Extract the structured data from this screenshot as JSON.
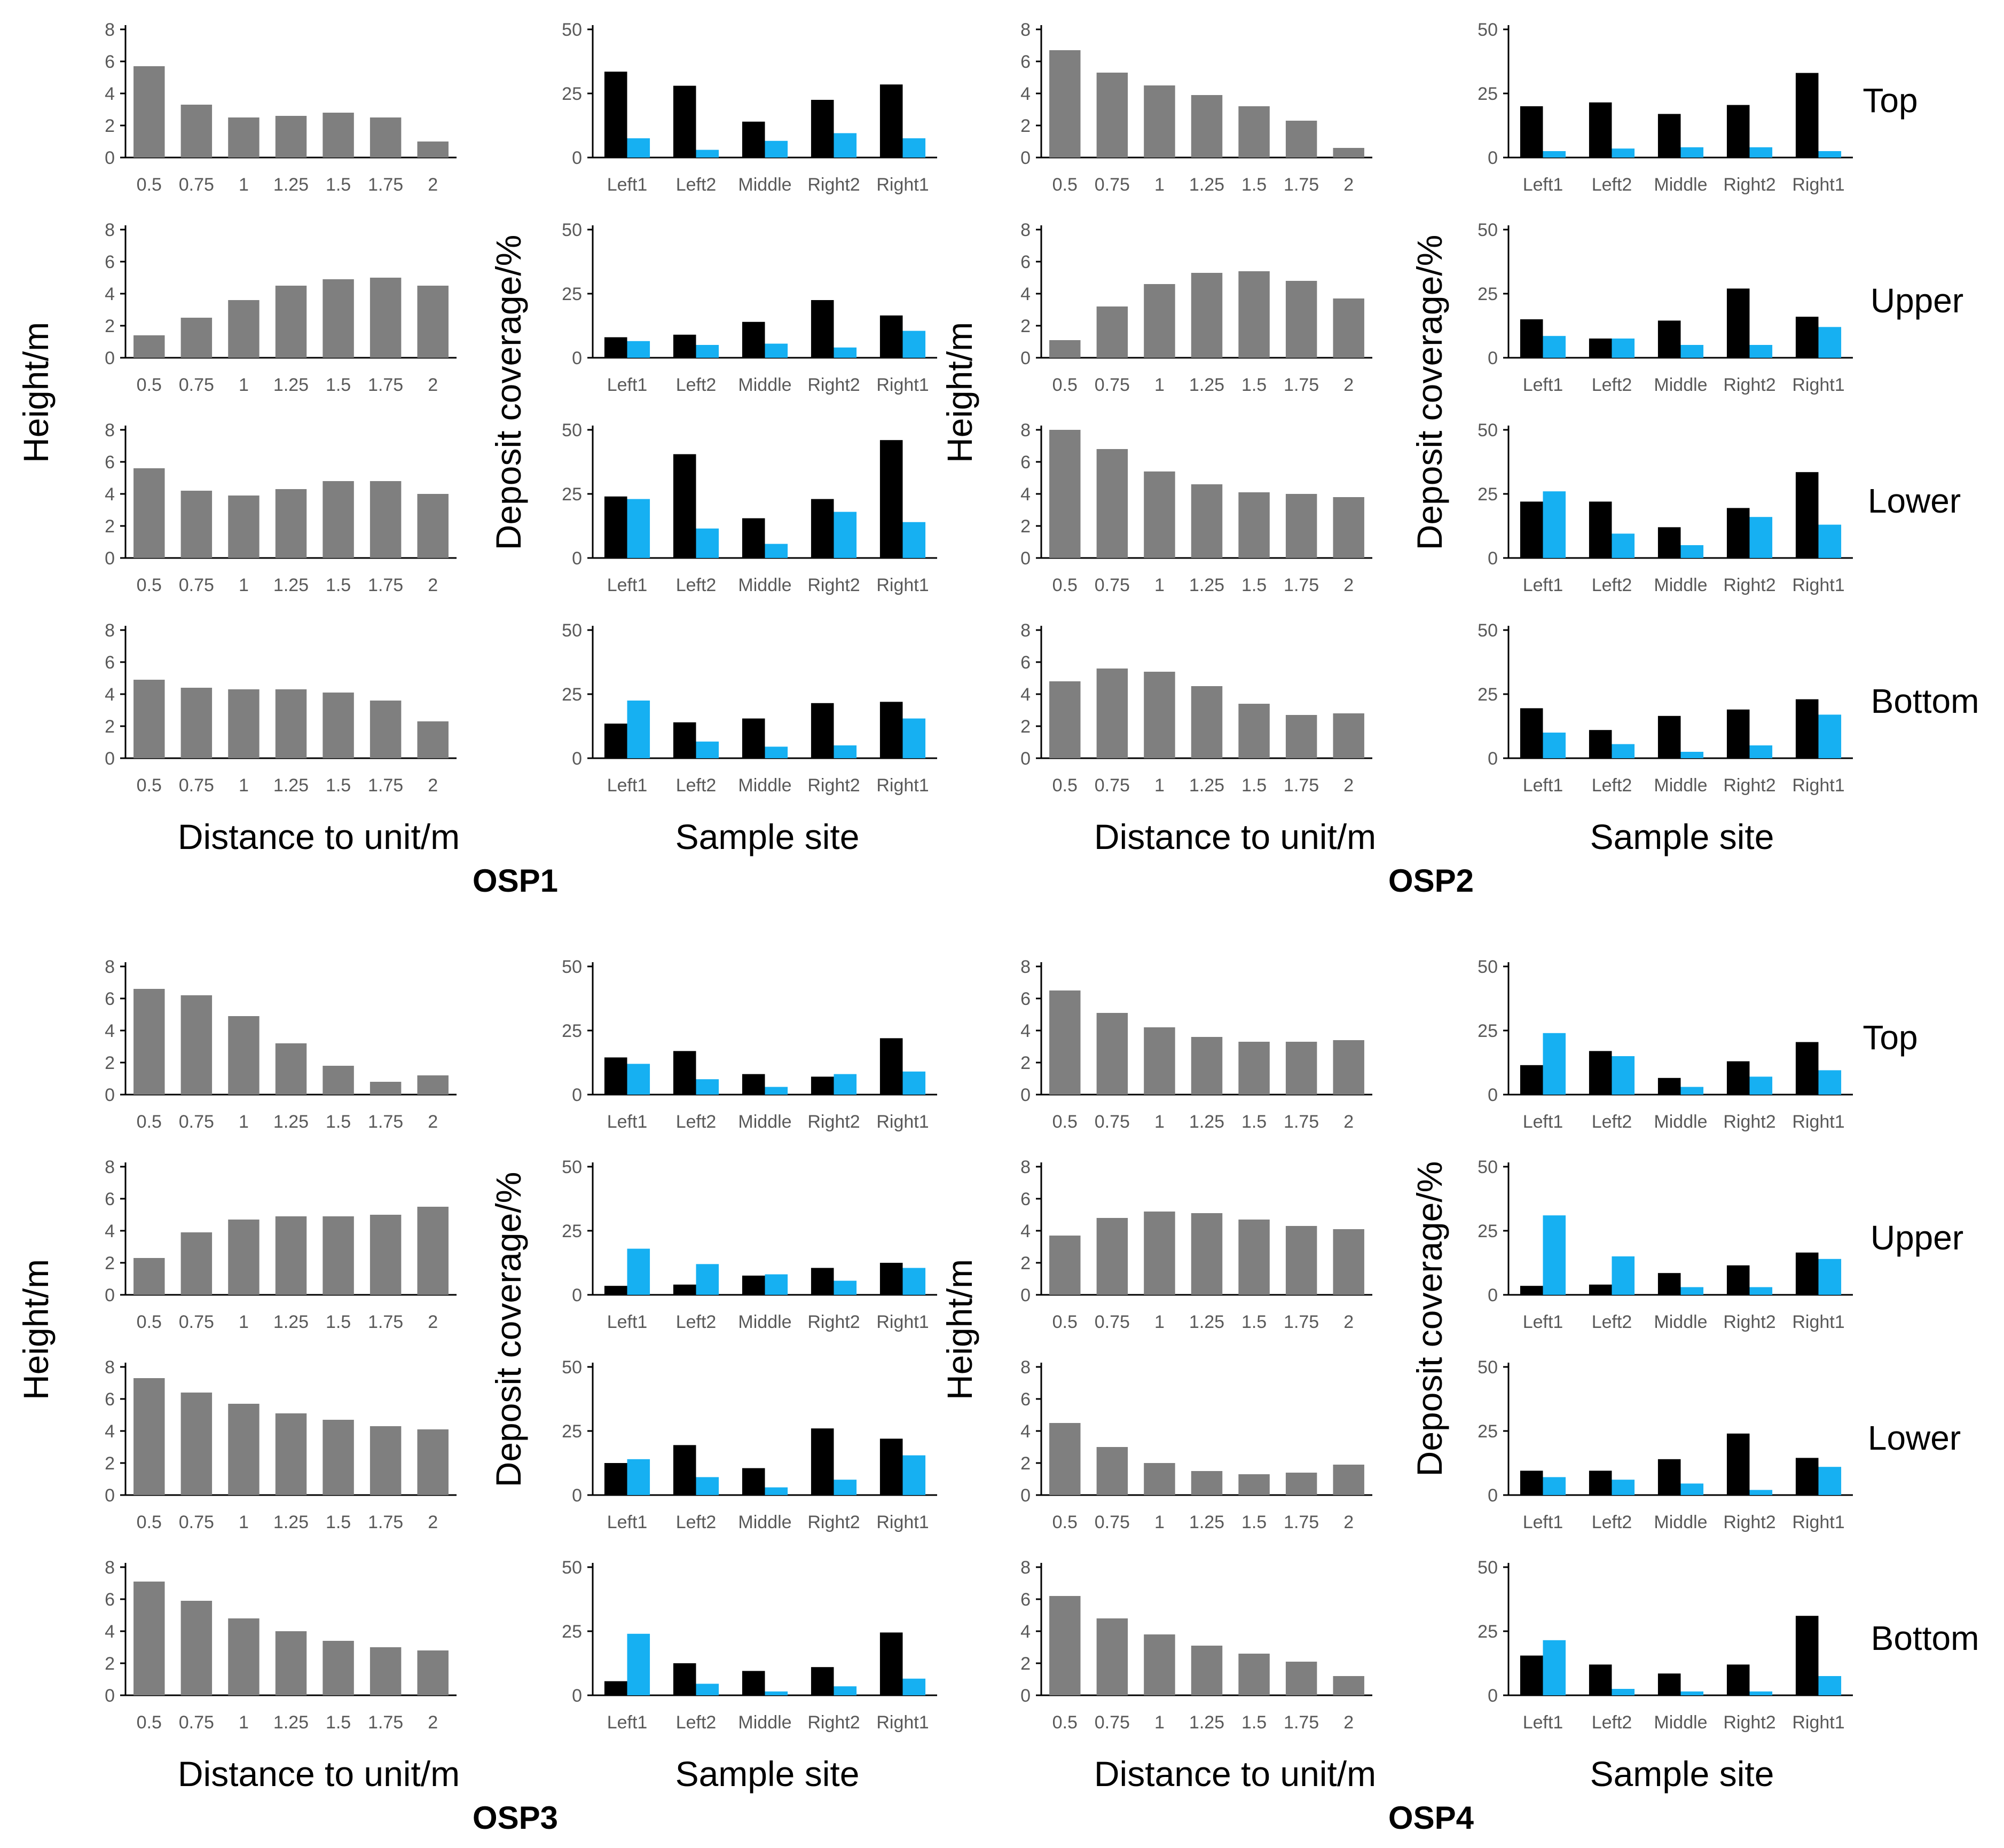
{
  "colors": {
    "height_bar": "#7f7f7f",
    "black_bar": "#000000",
    "blue_bar": "#16b0f2"
  },
  "labels": {
    "height_ylabel": "Height/m",
    "coverage_ylabel": "Deposit coverage/%",
    "distance_xlabel": "Distance to unit/m",
    "site_xlabel": "Sample site"
  },
  "chart_data": {
    "type": "bar",
    "height_axis": {
      "ylim": [
        0,
        8
      ],
      "yticks": [
        "0",
        "2",
        "4",
        "6",
        "8"
      ],
      "categories": [
        "0.5",
        "0.75",
        "1",
        "1.25",
        "1.5",
        "1.75",
        "2"
      ]
    },
    "coverage_axis": {
      "ylim": [
        0,
        50
      ],
      "yticks": [
        "0",
        "25",
        "50"
      ],
      "categories": [
        "Left1",
        "Left2",
        "Middle",
        "Right2",
        "Right1"
      ]
    },
    "row_labels": [
      "Top",
      "Upper",
      "Lower",
      "Bottom"
    ],
    "groups": [
      {
        "name": "OSP1",
        "height": [
          [
            5.7,
            3.3,
            2.5,
            2.6,
            2.8,
            2.5,
            1.0
          ],
          [
            1.4,
            2.5,
            3.6,
            4.5,
            4.9,
            5.0,
            4.5
          ],
          [
            5.6,
            4.2,
            3.9,
            4.3,
            4.8,
            4.8,
            4.0
          ],
          [
            4.9,
            4.4,
            4.3,
            4.3,
            4.1,
            3.6,
            2.3
          ]
        ],
        "coverage": [
          {
            "black": [
              33.5,
              28.0,
              14.0,
              22.5,
              28.5
            ],
            "blue": [
              7.5,
              3.0,
              6.5,
              9.5,
              7.5
            ]
          },
          {
            "black": [
              8.0,
              9.0,
              14.0,
              22.5,
              16.5
            ],
            "blue": [
              6.5,
              5.0,
              5.5,
              4.0,
              10.5
            ]
          },
          {
            "black": [
              24.0,
              40.5,
              15.5,
              23.0,
              46.0
            ],
            "blue": [
              23.0,
              11.5,
              5.5,
              18.0,
              14.0
            ]
          },
          {
            "black": [
              13.5,
              14.0,
              15.5,
              21.5,
              22.0
            ],
            "blue": [
              22.5,
              6.5,
              4.5,
              5.0,
              15.5
            ]
          }
        ]
      },
      {
        "name": "OSP2",
        "height": [
          [
            6.7,
            5.3,
            4.5,
            3.9,
            3.2,
            2.3,
            0.6
          ],
          [
            1.1,
            3.2,
            4.6,
            5.3,
            5.4,
            4.8,
            3.7
          ],
          [
            8.0,
            6.8,
            5.4,
            4.6,
            4.1,
            4.0,
            3.8
          ],
          [
            4.8,
            5.6,
            5.4,
            4.5,
            3.4,
            2.7,
            2.8
          ]
        ],
        "coverage": [
          {
            "black": [
              20.0,
              21.5,
              17.0,
              20.5,
              33.0
            ],
            "blue": [
              2.5,
              3.5,
              4.0,
              4.0,
              2.5
            ]
          },
          {
            "black": [
              15.0,
              7.5,
              14.5,
              27.0,
              16.0
            ],
            "blue": [
              8.5,
              7.5,
              5.0,
              5.0,
              12.0
            ]
          },
          {
            "black": [
              22.0,
              22.0,
              12.0,
              19.5,
              33.5
            ],
            "blue": [
              26.0,
              9.5,
              5.0,
              16.0,
              13.0
            ]
          },
          {
            "black": [
              19.5,
              11.0,
              16.5,
              19.0,
              23.0
            ],
            "blue": [
              10.0,
              5.5,
              2.5,
              5.0,
              17.0
            ]
          }
        ]
      },
      {
        "name": "OSP3",
        "height": [
          [
            6.6,
            6.2,
            4.9,
            3.2,
            1.8,
            0.8,
            1.2
          ],
          [
            2.3,
            3.9,
            4.7,
            4.9,
            4.9,
            5.0,
            5.5
          ],
          [
            7.3,
            6.4,
            5.7,
            5.1,
            4.7,
            4.3,
            4.1
          ],
          [
            7.1,
            5.9,
            4.8,
            4.0,
            3.4,
            3.0,
            2.8
          ]
        ],
        "coverage": [
          {
            "black": [
              14.5,
              17.0,
              8.0,
              7.0,
              22.0
            ],
            "blue": [
              12.0,
              6.0,
              3.0,
              8.0,
              9.0
            ]
          },
          {
            "black": [
              3.5,
              4.0,
              7.5,
              10.5,
              12.5
            ],
            "blue": [
              18.0,
              12.0,
              8.0,
              5.5,
              10.5
            ]
          },
          {
            "black": [
              12.5,
              19.5,
              10.5,
              26.0,
              22.0
            ],
            "blue": [
              14.0,
              7.0,
              3.0,
              6.0,
              15.5
            ]
          },
          {
            "black": [
              5.5,
              12.5,
              9.5,
              11.0,
              24.5
            ],
            "blue": [
              24.0,
              4.5,
              1.5,
              3.5,
              6.5
            ]
          }
        ]
      },
      {
        "name": "OSP4",
        "height": [
          [
            6.5,
            5.1,
            4.2,
            3.6,
            3.3,
            3.3,
            3.4
          ],
          [
            3.7,
            4.8,
            5.2,
            5.1,
            4.7,
            4.3,
            4.1
          ],
          [
            4.5,
            3.0,
            2.0,
            1.5,
            1.3,
            1.4,
            1.9
          ],
          [
            6.2,
            4.8,
            3.8,
            3.1,
            2.6,
            2.1,
            1.2
          ]
        ],
        "coverage": [
          {
            "black": [
              11.5,
              17.0,
              6.5,
              13.0,
              20.5
            ],
            "blue": [
              24.0,
              15.0,
              3.0,
              7.0,
              9.5
            ]
          },
          {
            "black": [
              3.5,
              4.0,
              8.5,
              11.5,
              16.5
            ],
            "blue": [
              31.0,
              15.0,
              3.0,
              3.0,
              14.0
            ]
          },
          {
            "black": [
              9.5,
              9.5,
              14.0,
              24.0,
              14.5
            ],
            "blue": [
              7.0,
              6.0,
              4.5,
              2.0,
              11.0
            ]
          },
          {
            "black": [
              15.5,
              12.0,
              8.5,
              12.0,
              31.0
            ],
            "blue": [
              21.5,
              2.5,
              1.5,
              1.5,
              7.5
            ]
          }
        ]
      }
    ]
  }
}
